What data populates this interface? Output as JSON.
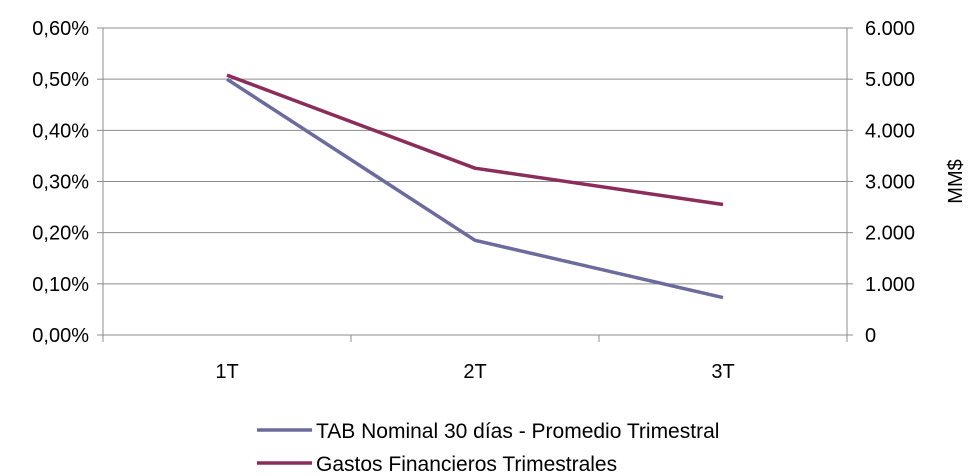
{
  "chart_data": {
    "type": "line",
    "categories": [
      "1T",
      "2T",
      "3T"
    ],
    "y_left": {
      "min": 0,
      "max": 0.006,
      "step": 0.001,
      "tick_labels": [
        "0,00%",
        "0,10%",
        "0,20%",
        "0,30%",
        "0,40%",
        "0,50%",
        "0,60%"
      ]
    },
    "y_right": {
      "min": 0,
      "max": 6000,
      "step": 1000,
      "tick_labels": [
        "0",
        "1.000",
        "2.000",
        "3.000",
        "4.000",
        "5.000",
        "6.000"
      ],
      "label": "MM$"
    },
    "series": [
      {
        "name": "TAB Nominal 30 días - Promedio Trimestral",
        "axis": "left",
        "values": [
          0.005,
          0.00185,
          0.00073
        ],
        "color": "#6b6b9e"
      },
      {
        "name": "Gastos Financieros Trimestrales",
        "axis": "right",
        "values": [
          5080,
          3260,
          2550
        ],
        "color": "#8b2c5a"
      }
    ],
    "grid": true,
    "legend_position": "bottom"
  }
}
